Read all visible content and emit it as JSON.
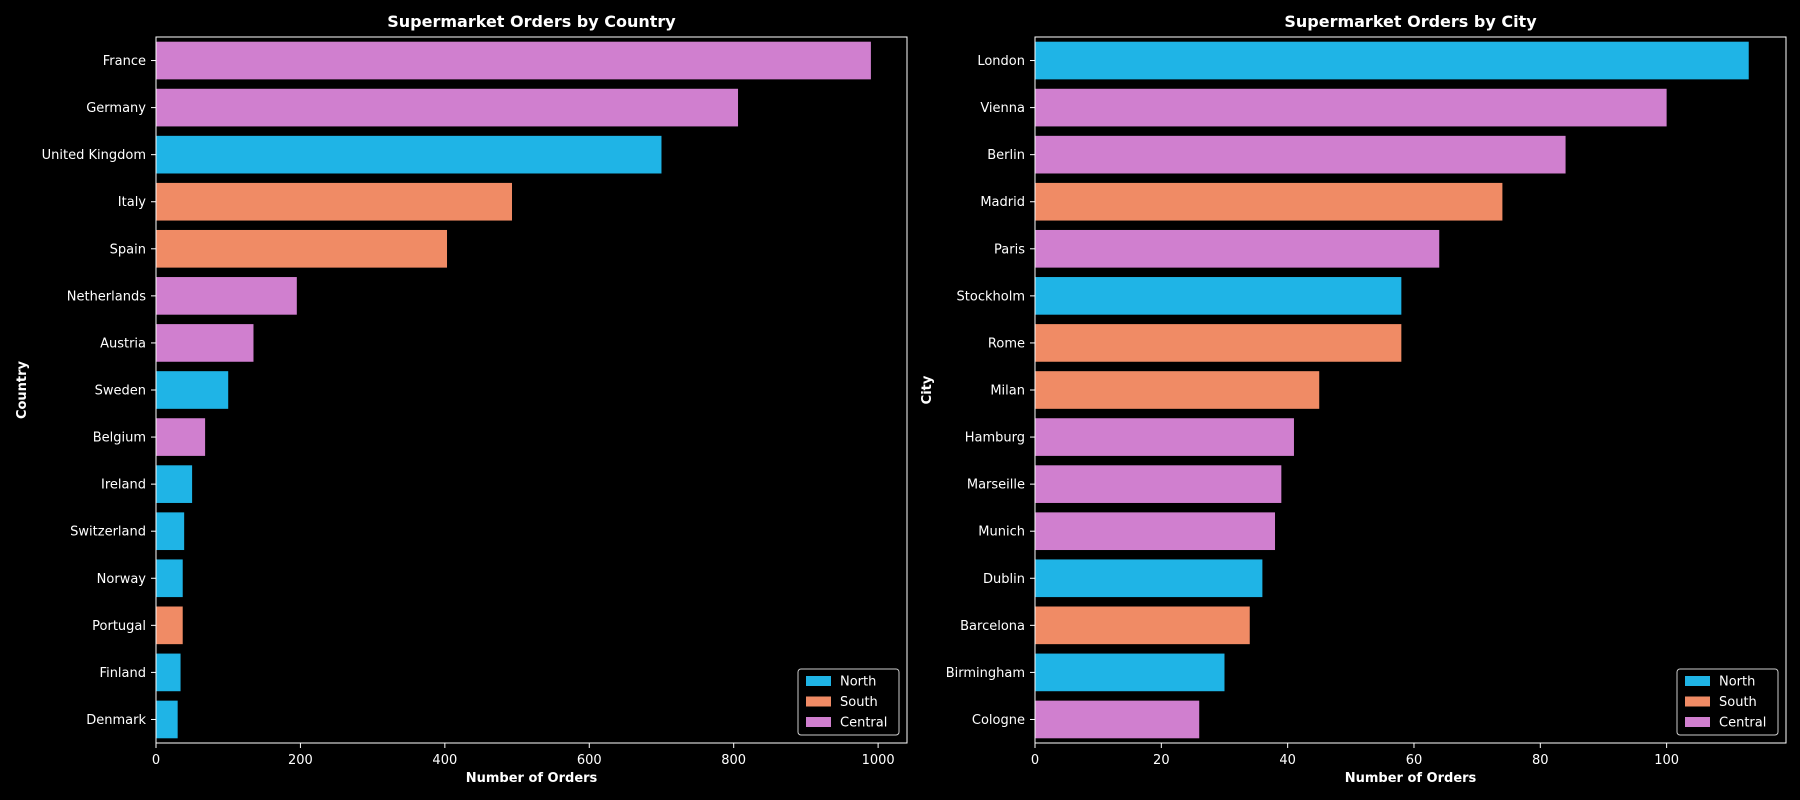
{
  "palette": {
    "North": "#1fb4e6",
    "South": "#f08b65",
    "Central": "#d07fcf"
  },
  "chart_data": [
    {
      "type": "bar",
      "orientation": "horizontal",
      "title": "Supermarket Orders by Country",
      "xlabel": "Number of Orders",
      "ylabel": "Country",
      "xlim": [
        0,
        1040
      ],
      "xticks": [
        0,
        200,
        400,
        600,
        800,
        1000
      ],
      "grid": false,
      "legend_position": "bottom-right",
      "legend": [
        "North",
        "South",
        "Central"
      ],
      "categories": [
        "France",
        "Germany",
        "United Kingdom",
        "Italy",
        "Spain",
        "Netherlands",
        "Austria",
        "Sweden",
        "Belgium",
        "Ireland",
        "Switzerland",
        "Norway",
        "Portugal",
        "Finland",
        "Denmark"
      ],
      "values": [
        990,
        806,
        700,
        493,
        403,
        195,
        135,
        100,
        68,
        50,
        39,
        37,
        37,
        34,
        30
      ],
      "regions": [
        "Central",
        "Central",
        "North",
        "South",
        "South",
        "Central",
        "Central",
        "North",
        "Central",
        "North",
        "North",
        "North",
        "South",
        "North",
        "North"
      ]
    },
    {
      "type": "bar",
      "orientation": "horizontal",
      "title": "Supermarket Orders by City",
      "xlabel": "Number of Orders",
      "ylabel": "City",
      "xlim": [
        0,
        118.9
      ],
      "xticks": [
        0,
        20,
        40,
        60,
        80,
        100
      ],
      "grid": false,
      "legend_position": "bottom-right",
      "legend": [
        "North",
        "South",
        "Central"
      ],
      "categories": [
        "London",
        "Vienna",
        "Berlin",
        "Madrid",
        "Paris",
        "Stockholm",
        "Rome",
        "Milan",
        "Hamburg",
        "Marseille",
        "Munich",
        "Dublin",
        "Barcelona",
        "Birmingham",
        "Cologne"
      ],
      "values": [
        113,
        100,
        84,
        74,
        64,
        58,
        58,
        45,
        41,
        39,
        38,
        36,
        34,
        30,
        26
      ],
      "regions": [
        "North",
        "Central",
        "Central",
        "South",
        "Central",
        "North",
        "South",
        "South",
        "Central",
        "Central",
        "Central",
        "North",
        "South",
        "North",
        "Central"
      ]
    }
  ]
}
